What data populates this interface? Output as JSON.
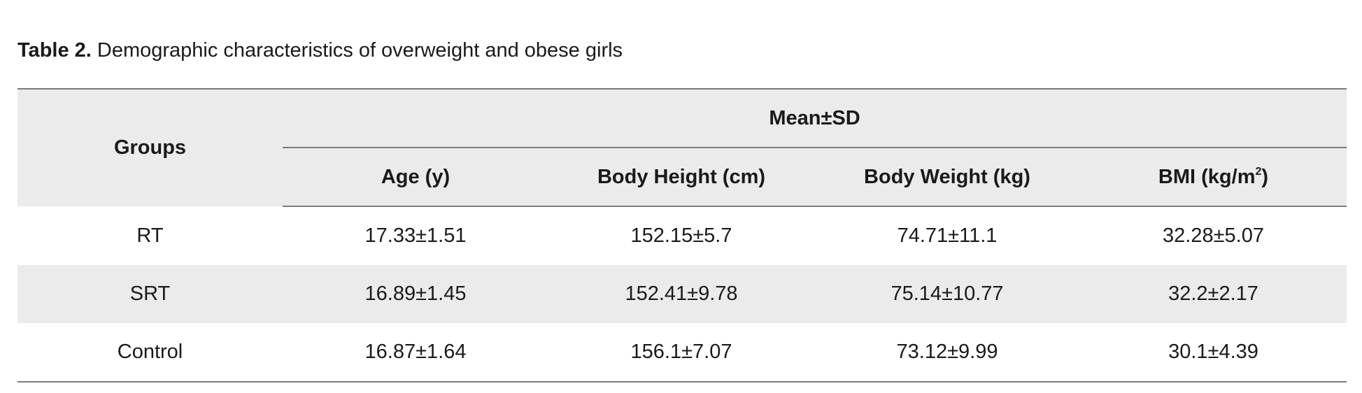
{
  "caption": {
    "label": "Table 2.",
    "text": " Demographic characteristics of overweight and obese girls"
  },
  "table": {
    "group_header": "Groups",
    "span_header": "Mean±SD",
    "columns": {
      "age": "Age (y)",
      "height": "Body Height (cm)",
      "weight": "Body Weight (kg)",
      "bmi_prefix": "BMI (kg/m",
      "bmi_sup": "2",
      "bmi_suffix": ")"
    },
    "rows": [
      {
        "group": "RT",
        "age": "17.33±1.51",
        "height": "152.15±5.7",
        "weight": "74.71±11.1",
        "bmi": "32.28±5.07"
      },
      {
        "group": "SRT",
        "age": "16.89±1.45",
        "height": "152.41±9.78",
        "weight": "75.14±10.77",
        "bmi": "32.2±2.17"
      },
      {
        "group": "Control",
        "age": "16.87±1.64",
        "height": "156.1±7.07",
        "weight": "73.12±9.99",
        "bmi": "30.1±4.39"
      }
    ]
  }
}
